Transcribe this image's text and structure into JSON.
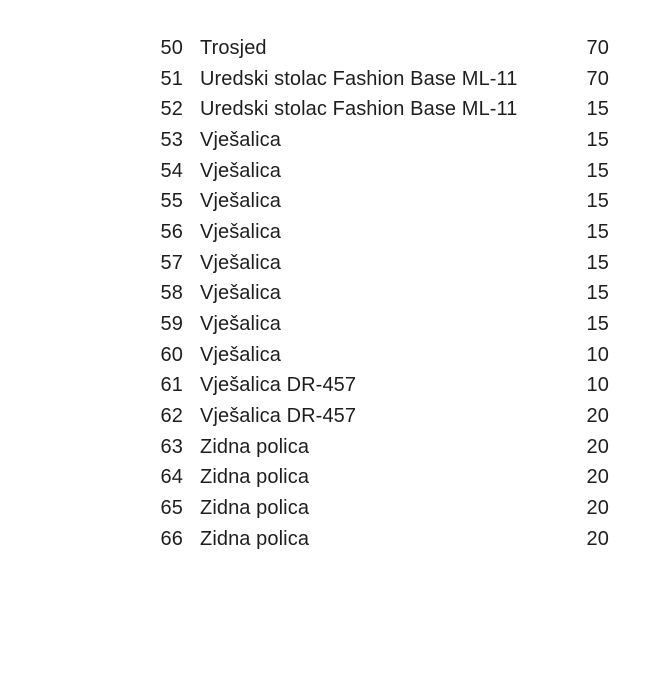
{
  "document": {
    "background": "#ffffff",
    "text_color": "#1e1e1e"
  },
  "table": {
    "rows": [
      {
        "num": "50",
        "name": "Trosjed",
        "qty": "70"
      },
      {
        "num": "51",
        "name": "Uredski stolac Fashion Base ML-11",
        "qty": "70"
      },
      {
        "num": "52",
        "name": "Uredski stolac Fashion Base ML-11",
        "qty": "15"
      },
      {
        "num": "53",
        "name": "Vješalica",
        "qty": "15"
      },
      {
        "num": "54",
        "name": "Vješalica",
        "qty": "15"
      },
      {
        "num": "55",
        "name": "Vješalica",
        "qty": "15"
      },
      {
        "num": "56",
        "name": "Vješalica",
        "qty": "15"
      },
      {
        "num": "57",
        "name": "Vješalica",
        "qty": "15"
      },
      {
        "num": "58",
        "name": "Vješalica",
        "qty": "15"
      },
      {
        "num": "59",
        "name": "Vješalica",
        "qty": "15"
      },
      {
        "num": "60",
        "name": "Vješalica",
        "qty": "10"
      },
      {
        "num": "61",
        "name": "Vješalica DR-457",
        "qty": "10"
      },
      {
        "num": "62",
        "name": "Vješalica DR-457",
        "qty": "20"
      },
      {
        "num": "63",
        "name": "Zidna polica",
        "qty": "20"
      },
      {
        "num": "64",
        "name": "Zidna polica",
        "qty": "20"
      },
      {
        "num": "65",
        "name": "Zidna polica",
        "qty": "20"
      },
      {
        "num": "66",
        "name": "Zidna polica",
        "qty": "20"
      }
    ]
  }
}
